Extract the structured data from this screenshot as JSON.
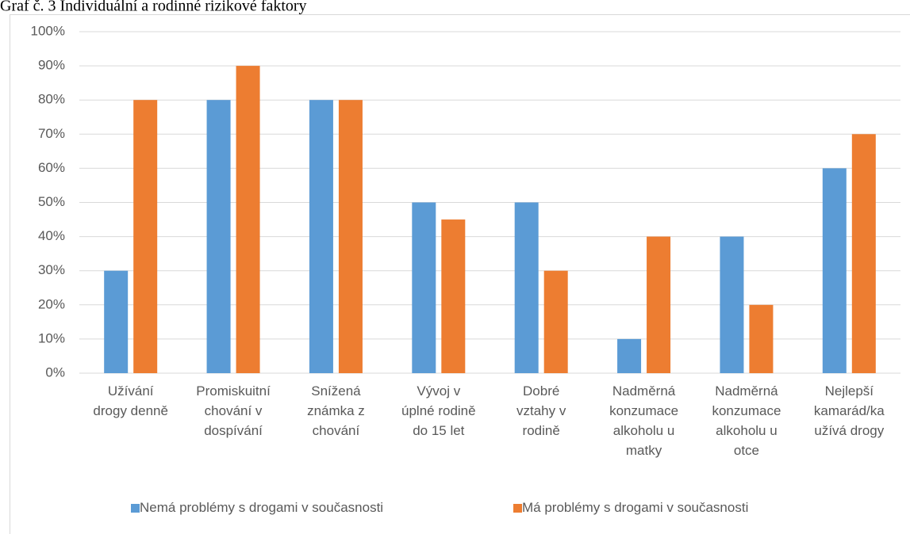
{
  "chart_data": {
    "type": "bar",
    "title": "Graf č. 3 Individuální a rodinné rizikové faktory",
    "categories": [
      "Užívání\ndrogy denně",
      "Promiskuitní\nchování v\ndospívání",
      "Snížená\nznámka z\nchování",
      "Vývoj v\núplné rodině\ndo 15 let",
      "Dobré\nvztahy v\nrodině",
      "Nadměrná\nkonzumace\nalkoholu u\nmatky",
      "Nadměrná\nkonzumace\nalkoholu u\notce",
      "Nejlepší\nkamarád/ka\nužívá drogy"
    ],
    "series": [
      {
        "name": "Nemá problémy s drogami v současnosti",
        "color": "#5b9bd5",
        "values": [
          30,
          80,
          80,
          50,
          50,
          10,
          40,
          60
        ]
      },
      {
        "name": "Má problémy s drogami v současnosti",
        "color": "#ed7d31",
        "values": [
          80,
          90,
          80,
          45,
          30,
          40,
          20,
          70
        ]
      }
    ],
    "ylim": [
      0,
      100
    ],
    "yticks": [
      {
        "value": 0,
        "label": "0%"
      },
      {
        "value": 10,
        "label": "10%"
      },
      {
        "value": 20,
        "label": "20%"
      },
      {
        "value": 30,
        "label": "30%"
      },
      {
        "value": 40,
        "label": "40%"
      },
      {
        "value": 50,
        "label": "50%"
      },
      {
        "value": 60,
        "label": "60%"
      },
      {
        "value": 70,
        "label": "70%"
      },
      {
        "value": 80,
        "label": "80%"
      },
      {
        "value": 90,
        "label": "90%"
      },
      {
        "value": 100,
        "label": "100%"
      }
    ],
    "grid": true,
    "legend": "bottom"
  }
}
